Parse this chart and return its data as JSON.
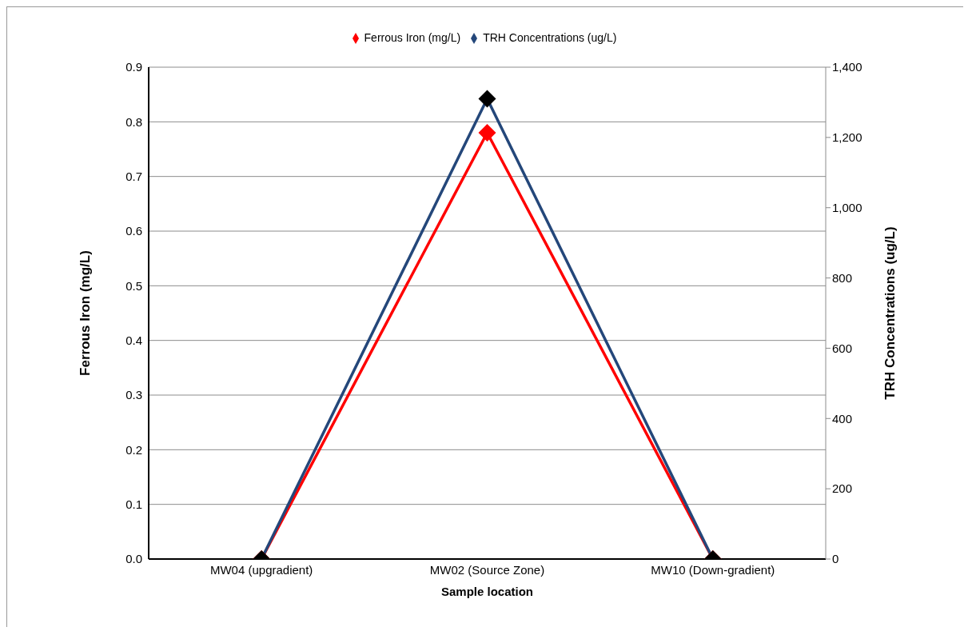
{
  "chart_data": {
    "type": "line",
    "xlabel": "Sample location",
    "ylabel": "Ferrous Iron (mg/L)",
    "y2label": "TRH Concentrations (ug/L)",
    "categories": [
      "MW04 (upgradient)",
      "MW02 (Source Zone)",
      "MW10 (Down-gradient)"
    ],
    "series": [
      {
        "name": "Ferrous Iron (mg/L)",
        "color": "#ff0000",
        "values": [
          0,
          0.78,
          0
        ]
      },
      {
        "name": "TRH Concentrations (ug/L)",
        "color": "#24477a",
        "colors": [
          "#000000",
          "#000000",
          "#000000"
        ],
        "axis": "y2",
        "values": [
          0,
          1310,
          0
        ]
      }
    ],
    "ylim": [
      0,
      0.9
    ],
    "yticks": [
      {
        "value": 0,
        "label": "0.0"
      },
      {
        "value": 0.1,
        "label": "0.1"
      },
      {
        "value": 0.2,
        "label": "0.2"
      },
      {
        "value": 0.3,
        "label": "0.3"
      },
      {
        "value": 0.4,
        "label": "0.4"
      },
      {
        "value": 0.5,
        "label": "0.5"
      },
      {
        "value": 0.6,
        "label": "0.6"
      },
      {
        "value": 0.7,
        "label": "0.7"
      },
      {
        "value": 0.8,
        "label": "0.8"
      },
      {
        "value": 0.9,
        "label": "0.9"
      }
    ],
    "y2lim": [
      0,
      1400
    ],
    "y2ticks": [
      0,
      200,
      400,
      600,
      800,
      {
        "value": 1000,
        "label": "1,000"
      },
      {
        "value": 1200,
        "label": "1,200"
      },
      {
        "value": 1400,
        "label": "1,400"
      }
    ],
    "grid": "y",
    "legend": "top",
    "marker": "diamond",
    "line_style": "solid"
  }
}
